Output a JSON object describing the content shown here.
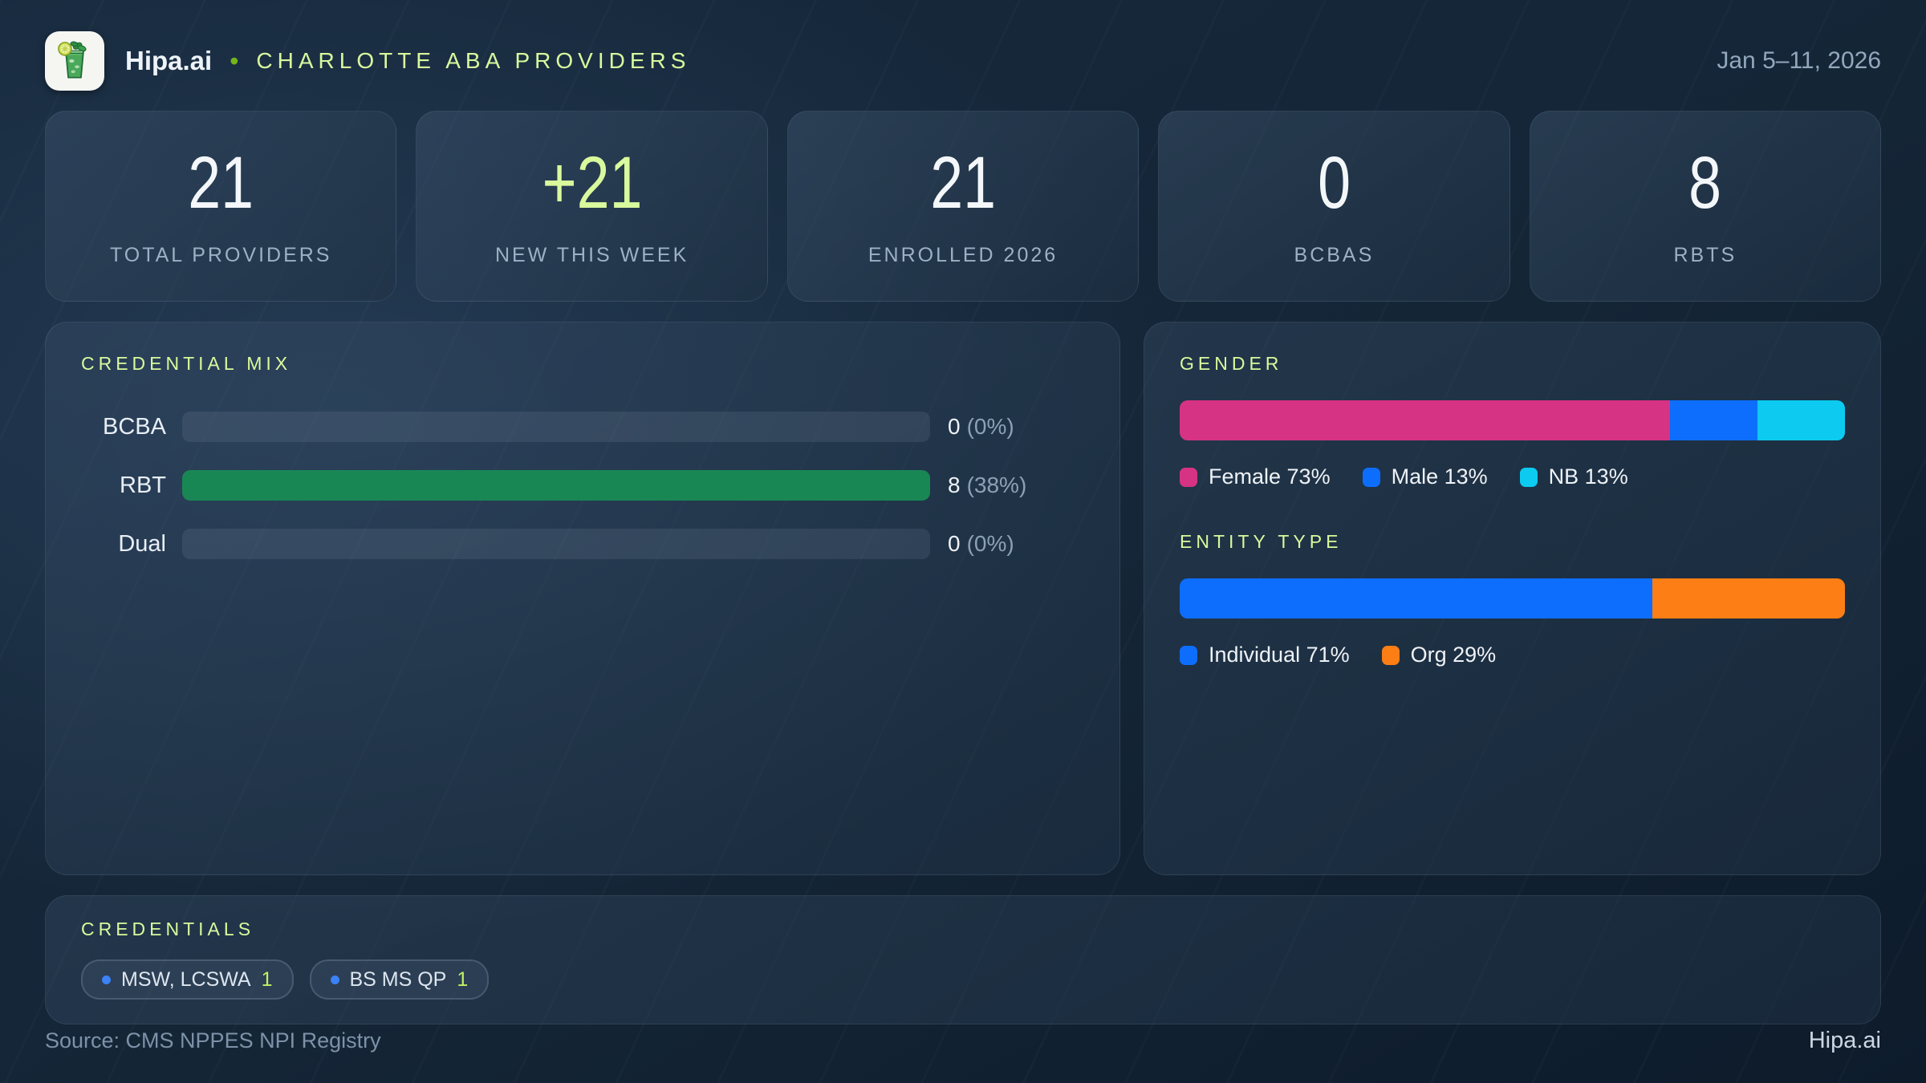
{
  "header": {
    "brand": "Hipa.ai",
    "separator": "•",
    "title": "CHARLOTTE ABA PROVIDERS",
    "date_range": "Jan 5–11, 2026"
  },
  "icons": {
    "logo": "mojito-glass"
  },
  "colors": {
    "accent_lime": "#d9f99d",
    "green": "#198754",
    "pink": "#d63384",
    "blue": "#0d6efd",
    "cyan": "#0dcaf0",
    "orange": "#fd7e14",
    "badge_dot_blue": "#3b82f6"
  },
  "stats": [
    {
      "value": "21",
      "label": "TOTAL PROVIDERS"
    },
    {
      "value": "+21",
      "label": "NEW THIS WEEK"
    },
    {
      "value": "21",
      "label": "ENROLLED 2026"
    },
    {
      "value": "0",
      "label": "BCBAS"
    },
    {
      "value": "8",
      "label": "RBTS"
    }
  ],
  "panels": {
    "credential_mix": {
      "title": "CREDENTIAL MIX",
      "rows": [
        {
          "label": "BCBA",
          "value": "0",
          "pct_text": "(0%)",
          "fill_pct": 0
        },
        {
          "label": "RBT",
          "value": "8",
          "pct_text": "(38%)",
          "fill_pct": 100
        },
        {
          "label": "Dual",
          "value": "0",
          "pct_text": "(0%)",
          "fill_pct": 0
        }
      ]
    },
    "gender": {
      "title": "GENDER"
    },
    "entity": {
      "title": "ENTITY TYPE"
    },
    "credentials": {
      "title": "CREDENTIALS",
      "badges": [
        {
          "label": "MSW, LCSWA",
          "count": "1"
        },
        {
          "label": "BS MS QP",
          "count": "1"
        }
      ]
    }
  },
  "footer": {
    "source": "Source: CMS NPPES NPI Registry",
    "brand": "Hipa.ai"
  },
  "chart_data": [
    {
      "type": "bar",
      "orientation": "horizontal",
      "title": "CREDENTIAL MIX",
      "categories": [
        "BCBA",
        "RBT",
        "Dual"
      ],
      "values": [
        0,
        8,
        0
      ],
      "pct_of_total": [
        0,
        38,
        0
      ],
      "value_labels": [
        "0 (0%)",
        "8 (38%)",
        "0 (0%)"
      ],
      "bar_fill_pct_normalized_to_max": [
        0,
        100,
        0
      ],
      "bar_color": "#198754",
      "track_color": "rgba(148,163,184,0.14)",
      "grid": false
    },
    {
      "type": "bar",
      "subtype": "stacked-100-horizontal",
      "title": "GENDER",
      "segments": [
        {
          "name": "Female",
          "pct": 73,
          "color": "#d63384"
        },
        {
          "name": "Male",
          "pct": 13,
          "color": "#0d6efd"
        },
        {
          "name": "NB",
          "pct": 13,
          "color": "#0dcaf0"
        }
      ],
      "legend": [
        {
          "text": "Female 73%",
          "color": "#d63384"
        },
        {
          "text": "Male 13%",
          "color": "#0d6efd"
        },
        {
          "text": "NB 13%",
          "color": "#0dcaf0"
        }
      ],
      "legend_position": "bottom",
      "grid": false
    },
    {
      "type": "bar",
      "subtype": "stacked-100-horizontal",
      "title": "ENTITY TYPE",
      "segments": [
        {
          "name": "Individual",
          "pct": 71,
          "color": "#0d6efd"
        },
        {
          "name": "Org",
          "pct": 29,
          "color": "#fd7e14"
        }
      ],
      "legend": [
        {
          "text": "Individual 71%",
          "color": "#0d6efd"
        },
        {
          "text": "Org 29%",
          "color": "#fd7e14"
        }
      ],
      "legend_position": "bottom",
      "grid": false
    }
  ]
}
